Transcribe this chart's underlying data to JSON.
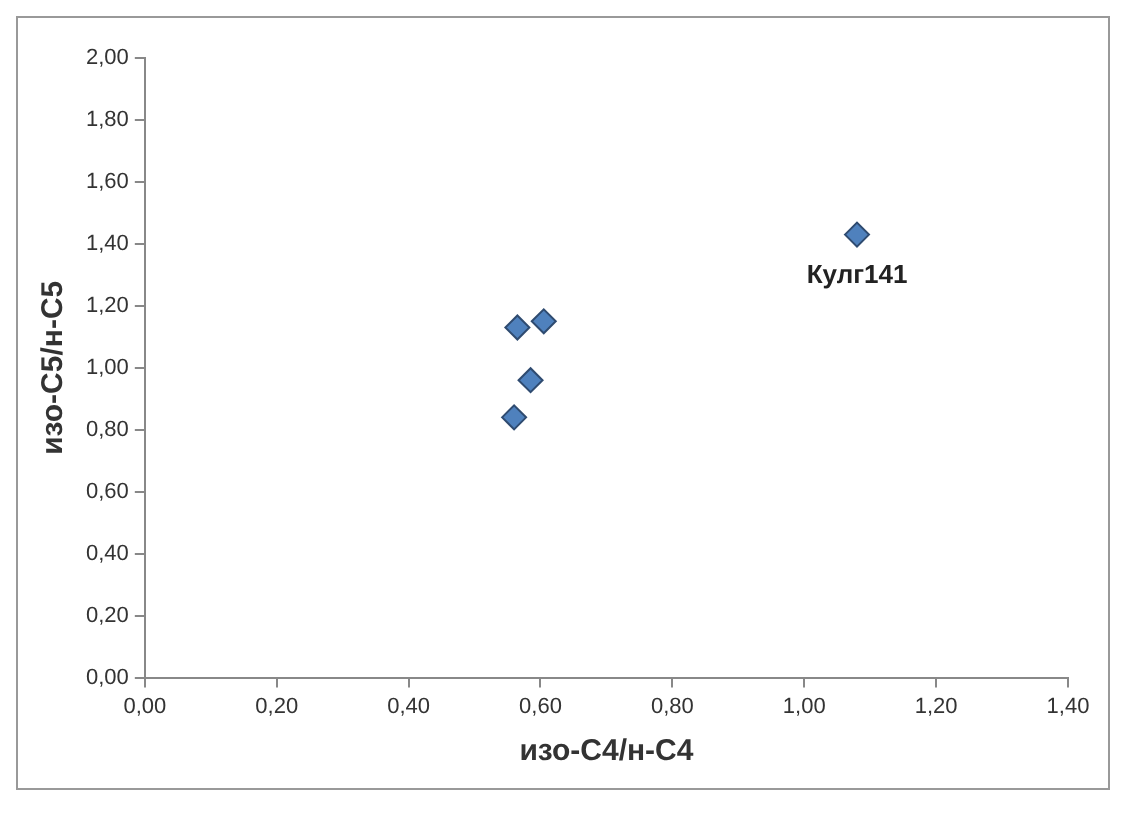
{
  "chart_data": {
    "type": "scatter",
    "xlabel": "изо-С4/н-С4",
    "ylabel": "изо-С5/н-С5",
    "x": [
      0.56,
      0.565,
      0.605,
      0.585,
      1.08
    ],
    "series": [
      {
        "color": "#4f81bd",
        "values": [
          0.84,
          1.13,
          1.15,
          0.96,
          1.43
        ]
      }
    ],
    "xlim": [
      0,
      1.4
    ],
    "ylim": [
      0,
      2
    ],
    "xticks": [
      {
        "value": 0,
        "label": "0,00"
      },
      {
        "value": 0.2,
        "label": "0,20"
      },
      {
        "value": 0.4,
        "label": "0,40"
      },
      {
        "value": 0.6,
        "label": "0,60"
      },
      {
        "value": 0.8,
        "label": "0,80"
      },
      {
        "value": 1,
        "label": "1,00"
      },
      {
        "value": 1.2,
        "label": "1,20"
      },
      {
        "value": 1.4,
        "label": "1,40"
      }
    ],
    "yticks": [
      {
        "value": 0,
        "label": "0,00"
      },
      {
        "value": 0.2,
        "label": "0,20"
      },
      {
        "value": 0.4,
        "label": "0,40"
      },
      {
        "value": 0.6,
        "label": "0,60"
      },
      {
        "value": 0.8,
        "label": "0,80"
      },
      {
        "value": 1,
        "label": "1,00"
      },
      {
        "value": 1.2,
        "label": "1,20"
      },
      {
        "value": 1.4,
        "label": "1,40"
      },
      {
        "value": 1.6,
        "label": "1,60"
      },
      {
        "value": 1.8,
        "label": "1,80"
      },
      {
        "value": 2,
        "label": "2,00"
      }
    ],
    "annotations": [
      {
        "text": "Кулг141",
        "x": 1.08,
        "y": 1.43
      }
    ],
    "marker": "diamond",
    "grid": false,
    "legend": false
  }
}
